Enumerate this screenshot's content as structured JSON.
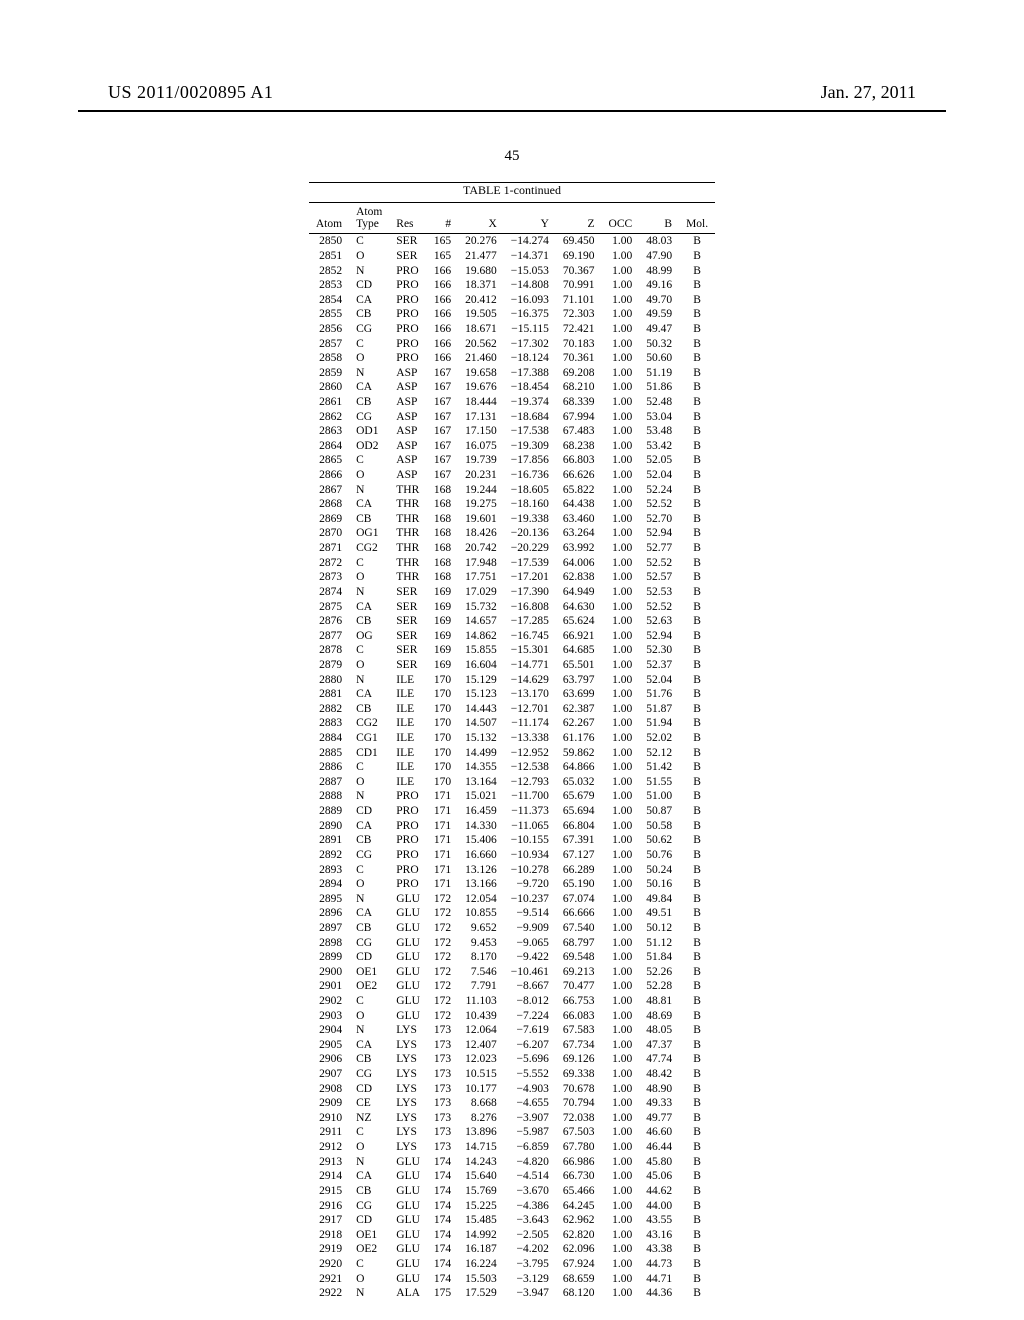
{
  "header": {
    "doc_id": "US 2011/0020895 A1",
    "date": "Jan. 27, 2011",
    "page_number": "45"
  },
  "table": {
    "title": "TABLE 1-continued",
    "columns": [
      "Atom",
      "Atom Type",
      "Res",
      "#",
      "X",
      "Y",
      "Z",
      "OCC",
      "B",
      "Mol."
    ],
    "rows": [
      [
        2850,
        "C",
        "SER",
        165,
        "20.276",
        "−14.274",
        "69.450",
        "1.00",
        "48.03",
        "B"
      ],
      [
        2851,
        "O",
        "SER",
        165,
        "21.477",
        "−14.371",
        "69.190",
        "1.00",
        "47.90",
        "B"
      ],
      [
        2852,
        "N",
        "PRO",
        166,
        "19.680",
        "−15.053",
        "70.367",
        "1.00",
        "48.99",
        "B"
      ],
      [
        2853,
        "CD",
        "PRO",
        166,
        "18.371",
        "−14.808",
        "70.991",
        "1.00",
        "49.16",
        "B"
      ],
      [
        2854,
        "CA",
        "PRO",
        166,
        "20.412",
        "−16.093",
        "71.101",
        "1.00",
        "49.70",
        "B"
      ],
      [
        2855,
        "CB",
        "PRO",
        166,
        "19.505",
        "−16.375",
        "72.303",
        "1.00",
        "49.59",
        "B"
      ],
      [
        2856,
        "CG",
        "PRO",
        166,
        "18.671",
        "−15.115",
        "72.421",
        "1.00",
        "49.47",
        "B"
      ],
      [
        2857,
        "C",
        "PRO",
        166,
        "20.562",
        "−17.302",
        "70.183",
        "1.00",
        "50.32",
        "B"
      ],
      [
        2858,
        "O",
        "PRO",
        166,
        "21.460",
        "−18.124",
        "70.361",
        "1.00",
        "50.60",
        "B"
      ],
      [
        2859,
        "N",
        "ASP",
        167,
        "19.658",
        "−17.388",
        "69.208",
        "1.00",
        "51.19",
        "B"
      ],
      [
        2860,
        "CA",
        "ASP",
        167,
        "19.676",
        "−18.454",
        "68.210",
        "1.00",
        "51.86",
        "B"
      ],
      [
        2861,
        "CB",
        "ASP",
        167,
        "18.444",
        "−19.374",
        "68.339",
        "1.00",
        "52.48",
        "B"
      ],
      [
        2862,
        "CG",
        "ASP",
        167,
        "17.131",
        "−18.684",
        "67.994",
        "1.00",
        "53.04",
        "B"
      ],
      [
        2863,
        "OD1",
        "ASP",
        167,
        "17.150",
        "−17.538",
        "67.483",
        "1.00",
        "53.48",
        "B"
      ],
      [
        2864,
        "OD2",
        "ASP",
        167,
        "16.075",
        "−19.309",
        "68.238",
        "1.00",
        "53.42",
        "B"
      ],
      [
        2865,
        "C",
        "ASP",
        167,
        "19.739",
        "−17.856",
        "66.803",
        "1.00",
        "52.05",
        "B"
      ],
      [
        2866,
        "O",
        "ASP",
        167,
        "20.231",
        "−16.736",
        "66.626",
        "1.00",
        "52.04",
        "B"
      ],
      [
        2867,
        "N",
        "THR",
        168,
        "19.244",
        "−18.605",
        "65.822",
        "1.00",
        "52.24",
        "B"
      ],
      [
        2868,
        "CA",
        "THR",
        168,
        "19.275",
        "−18.160",
        "64.438",
        "1.00",
        "52.52",
        "B"
      ],
      [
        2869,
        "CB",
        "THR",
        168,
        "19.601",
        "−19.338",
        "63.460",
        "1.00",
        "52.70",
        "B"
      ],
      [
        2870,
        "OG1",
        "THR",
        168,
        "18.426",
        "−20.136",
        "63.264",
        "1.00",
        "52.94",
        "B"
      ],
      [
        2871,
        "CG2",
        "THR",
        168,
        "20.742",
        "−20.229",
        "63.992",
        "1.00",
        "52.77",
        "B"
      ],
      [
        2872,
        "C",
        "THR",
        168,
        "17.948",
        "−17.539",
        "64.006",
        "1.00",
        "52.52",
        "B"
      ],
      [
        2873,
        "O",
        "THR",
        168,
        "17.751",
        "−17.201",
        "62.838",
        "1.00",
        "52.57",
        "B"
      ],
      [
        2874,
        "N",
        "SER",
        169,
        "17.029",
        "−17.390",
        "64.949",
        "1.00",
        "52.53",
        "B"
      ],
      [
        2875,
        "CA",
        "SER",
        169,
        "15.732",
        "−16.808",
        "64.630",
        "1.00",
        "52.52",
        "B"
      ],
      [
        2876,
        "CB",
        "SER",
        169,
        "14.657",
        "−17.285",
        "65.624",
        "1.00",
        "52.63",
        "B"
      ],
      [
        2877,
        "OG",
        "SER",
        169,
        "14.862",
        "−16.745",
        "66.921",
        "1.00",
        "52.94",
        "B"
      ],
      [
        2878,
        "C",
        "SER",
        169,
        "15.855",
        "−15.301",
        "64.685",
        "1.00",
        "52.30",
        "B"
      ],
      [
        2879,
        "O",
        "SER",
        169,
        "16.604",
        "−14.771",
        "65.501",
        "1.00",
        "52.37",
        "B"
      ],
      [
        2880,
        "N",
        "ILE",
        170,
        "15.129",
        "−14.629",
        "63.797",
        "1.00",
        "52.04",
        "B"
      ],
      [
        2881,
        "CA",
        "ILE",
        170,
        "15.123",
        "−13.170",
        "63.699",
        "1.00",
        "51.76",
        "B"
      ],
      [
        2882,
        "CB",
        "ILE",
        170,
        "14.443",
        "−12.701",
        "62.387",
        "1.00",
        "51.87",
        "B"
      ],
      [
        2883,
        "CG2",
        "ILE",
        170,
        "14.507",
        "−11.174",
        "62.267",
        "1.00",
        "51.94",
        "B"
      ],
      [
        2884,
        "CG1",
        "ILE",
        170,
        "15.132",
        "−13.338",
        "61.176",
        "1.00",
        "52.02",
        "B"
      ],
      [
        2885,
        "CD1",
        "ILE",
        170,
        "14.499",
        "−12.952",
        "59.862",
        "1.00",
        "52.12",
        "B"
      ],
      [
        2886,
        "C",
        "ILE",
        170,
        "14.355",
        "−12.538",
        "64.866",
        "1.00",
        "51.42",
        "B"
      ],
      [
        2887,
        "O",
        "ILE",
        170,
        "13.164",
        "−12.793",
        "65.032",
        "1.00",
        "51.55",
        "B"
      ],
      [
        2888,
        "N",
        "PRO",
        171,
        "15.021",
        "−11.700",
        "65.679",
        "1.00",
        "51.00",
        "B"
      ],
      [
        2889,
        "CD",
        "PRO",
        171,
        "16.459",
        "−11.373",
        "65.694",
        "1.00",
        "50.87",
        "B"
      ],
      [
        2890,
        "CA",
        "PRO",
        171,
        "14.330",
        "−11.065",
        "66.804",
        "1.00",
        "50.58",
        "B"
      ],
      [
        2891,
        "CB",
        "PRO",
        171,
        "15.406",
        "−10.155",
        "67.391",
        "1.00",
        "50.62",
        "B"
      ],
      [
        2892,
        "CG",
        "PRO",
        171,
        "16.660",
        "−10.934",
        "67.127",
        "1.00",
        "50.76",
        "B"
      ],
      [
        2893,
        "C",
        "PRO",
        171,
        "13.126",
        "−10.278",
        "66.289",
        "1.00",
        "50.24",
        "B"
      ],
      [
        2894,
        "O",
        "PRO",
        171,
        "13.166",
        "−9.720",
        "65.190",
        "1.00",
        "50.16",
        "B"
      ],
      [
        2895,
        "N",
        "GLU",
        172,
        "12.054",
        "−10.237",
        "67.074",
        "1.00",
        "49.84",
        "B"
      ],
      [
        2896,
        "CA",
        "GLU",
        172,
        "10.855",
        "−9.514",
        "66.666",
        "1.00",
        "49.51",
        "B"
      ],
      [
        2897,
        "CB",
        "GLU",
        172,
        "9.652",
        "−9.909",
        "67.540",
        "1.00",
        "50.12",
        "B"
      ],
      [
        2898,
        "CG",
        "GLU",
        172,
        "9.453",
        "−9.065",
        "68.797",
        "1.00",
        "51.12",
        "B"
      ],
      [
        2899,
        "CD",
        "GLU",
        172,
        "8.170",
        "−9.422",
        "69.548",
        "1.00",
        "51.84",
        "B"
      ],
      [
        2900,
        "OE1",
        "GLU",
        172,
        "7.546",
        "−10.461",
        "69.213",
        "1.00",
        "52.26",
        "B"
      ],
      [
        2901,
        "OE2",
        "GLU",
        172,
        "7.791",
        "−8.667",
        "70.477",
        "1.00",
        "52.28",
        "B"
      ],
      [
        2902,
        "C",
        "GLU",
        172,
        "11.103",
        "−8.012",
        "66.753",
        "1.00",
        "48.81",
        "B"
      ],
      [
        2903,
        "O",
        "GLU",
        172,
        "10.439",
        "−7.224",
        "66.083",
        "1.00",
        "48.69",
        "B"
      ],
      [
        2904,
        "N",
        "LYS",
        173,
        "12.064",
        "−7.619",
        "67.583",
        "1.00",
        "48.05",
        "B"
      ],
      [
        2905,
        "CA",
        "LYS",
        173,
        "12.407",
        "−6.207",
        "67.734",
        "1.00",
        "47.37",
        "B"
      ],
      [
        2906,
        "CB",
        "LYS",
        173,
        "12.023",
        "−5.696",
        "69.126",
        "1.00",
        "47.74",
        "B"
      ],
      [
        2907,
        "CG",
        "LYS",
        173,
        "10.515",
        "−5.552",
        "69.338",
        "1.00",
        "48.42",
        "B"
      ],
      [
        2908,
        "CD",
        "LYS",
        173,
        "10.177",
        "−4.903",
        "70.678",
        "1.00",
        "48.90",
        "B"
      ],
      [
        2909,
        "CE",
        "LYS",
        173,
        "8.668",
        "−4.655",
        "70.794",
        "1.00",
        "49.33",
        "B"
      ],
      [
        2910,
        "NZ",
        "LYS",
        173,
        "8.276",
        "−3.907",
        "72.038",
        "1.00",
        "49.77",
        "B"
      ],
      [
        2911,
        "C",
        "LYS",
        173,
        "13.896",
        "−5.987",
        "67.503",
        "1.00",
        "46.60",
        "B"
      ],
      [
        2912,
        "O",
        "LYS",
        173,
        "14.715",
        "−6.859",
        "67.780",
        "1.00",
        "46.44",
        "B"
      ],
      [
        2913,
        "N",
        "GLU",
        174,
        "14.243",
        "−4.820",
        "66.986",
        "1.00",
        "45.80",
        "B"
      ],
      [
        2914,
        "CA",
        "GLU",
        174,
        "15.640",
        "−4.514",
        "66.730",
        "1.00",
        "45.06",
        "B"
      ],
      [
        2915,
        "CB",
        "GLU",
        174,
        "15.769",
        "−3.670",
        "65.466",
        "1.00",
        "44.62",
        "B"
      ],
      [
        2916,
        "CG",
        "GLU",
        174,
        "15.225",
        "−4.386",
        "64.245",
        "1.00",
        "44.00",
        "B"
      ],
      [
        2917,
        "CD",
        "GLU",
        174,
        "15.485",
        "−3.643",
        "62.962",
        "1.00",
        "43.55",
        "B"
      ],
      [
        2918,
        "OE1",
        "GLU",
        174,
        "14.992",
        "−2.505",
        "62.820",
        "1.00",
        "43.16",
        "B"
      ],
      [
        2919,
        "OE2",
        "GLU",
        174,
        "16.187",
        "−4.202",
        "62.096",
        "1.00",
        "43.38",
        "B"
      ],
      [
        2920,
        "C",
        "GLU",
        174,
        "16.224",
        "−3.795",
        "67.924",
        "1.00",
        "44.73",
        "B"
      ],
      [
        2921,
        "O",
        "GLU",
        174,
        "15.503",
        "−3.129",
        "68.659",
        "1.00",
        "44.71",
        "B"
      ],
      [
        2922,
        "N",
        "ALA",
        175,
        "17.529",
        "−3.947",
        "68.120",
        "1.00",
        "44.36",
        "B"
      ]
    ]
  }
}
